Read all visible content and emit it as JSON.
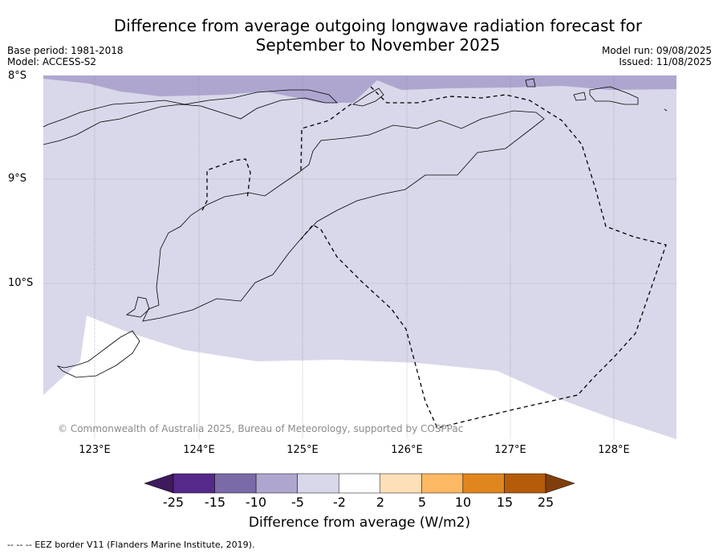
{
  "title_line1": "Difference from average outgoing longwave radiation forecast for",
  "title_line2": "September to November 2025",
  "base_period": "Base period: 1981-2018",
  "model": "Model: ACCESS-S2",
  "model_run": "Model run: 09/08/2025",
  "issued": "Issued: 11/08/2025",
  "lat_labels": [
    "8°S",
    "9°S",
    "10°S"
  ],
  "lon_labels": [
    "123°E",
    "124°E",
    "125°E",
    "126°E",
    "127°E",
    "128°E"
  ],
  "copyright": "© Commonwealth of Australia 2025, Bureau of Meteorology, supported by COSPPac",
  "colorbar": {
    "ticks": [
      "-25",
      "-15",
      "-10",
      "-5",
      "-2",
      "2",
      "5",
      "10",
      "15",
      "25"
    ],
    "colors": [
      "#3f1a5c",
      "#55298a",
      "#7b6aa8",
      "#afa6d0",
      "#d8d8ea",
      "#ffffff",
      "#fde0b8",
      "#fcb863",
      "#e0861f",
      "#b55c0b",
      "#7f3f0c"
    ],
    "label": "Difference from average (W/m2)"
  },
  "footnote": "--  --  -- EEZ border V11 (Flanders Marine Institute, 2019).",
  "colors": {
    "light_purple": "#d8d8ea",
    "medium_purple": "#afa6d0"
  }
}
